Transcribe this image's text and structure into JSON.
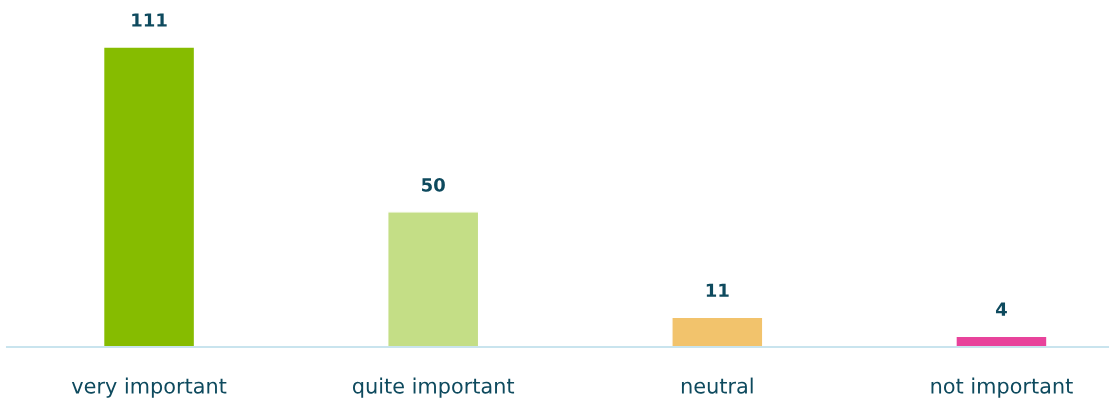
{
  "chart_data": {
    "type": "bar",
    "categories": [
      "very important",
      "quite important",
      "neutral",
      "not important"
    ],
    "values": [
      111,
      50,
      11,
      4
    ],
    "colors": [
      "#86bc00",
      "#c4de86",
      "#f2c36c",
      "#e8439b"
    ],
    "data_labels": true,
    "grid": false,
    "legend": false
  }
}
